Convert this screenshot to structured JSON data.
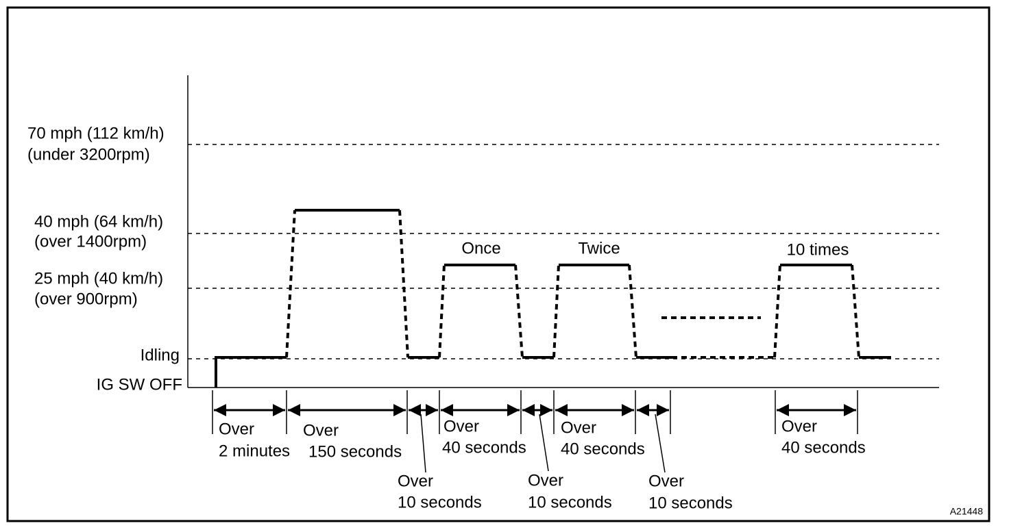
{
  "levels": [
    {
      "speed": "70 mph (112 km/h)",
      "rpm": "(under 3200rpm)"
    },
    {
      "speed": "40 mph (64 km/h)",
      "rpm": "(over 1400rpm)"
    },
    {
      "speed": "25 mph (40 km/h)",
      "rpm": "(over 900rpm)"
    },
    {
      "speed": "Idling"
    },
    {
      "speed": "IG SW OFF"
    }
  ],
  "repetitions": [
    "Once",
    "Twice",
    "10 times"
  ],
  "intervals": [
    {
      "prefix": "Over",
      "duration": "2 minutes"
    },
    {
      "prefix": "Over",
      "duration": "150 seconds"
    },
    {
      "prefix": "Over",
      "duration": "10 seconds"
    },
    {
      "prefix": "Over",
      "duration": "40 seconds"
    },
    {
      "prefix": "Over",
      "duration": "10 seconds"
    },
    {
      "prefix": "Over",
      "duration": "40 seconds"
    },
    {
      "prefix": "Over",
      "duration": "10 seconds"
    },
    {
      "prefix": "Over",
      "duration": "40 seconds"
    }
  ],
  "figure_id": "A21448"
}
